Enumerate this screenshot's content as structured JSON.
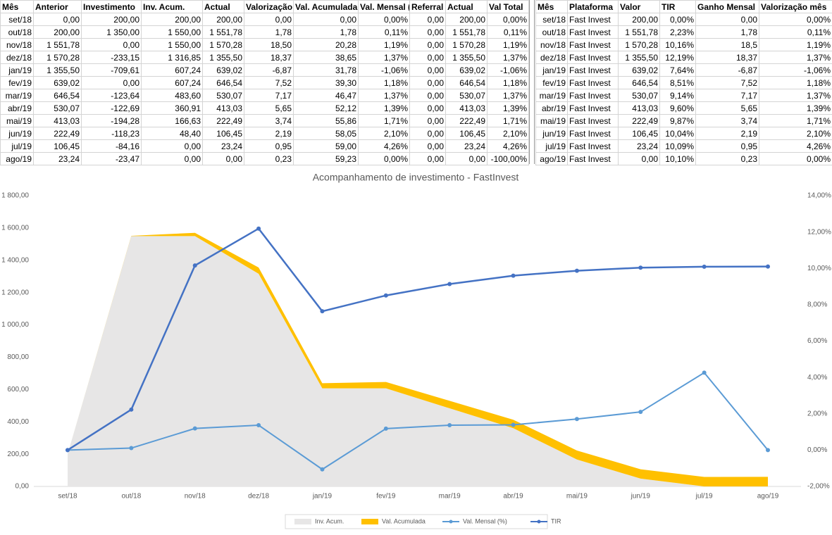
{
  "table1": {
    "header": [
      "Mês",
      "Anterior",
      "Investimento",
      "Inv. Acum.",
      "Actual",
      "Valorização",
      "Val. Acumulada",
      "Val. Mensal (",
      "Referral",
      "Actual",
      "Val Total"
    ],
    "rows": [
      [
        "set/18",
        "0,00",
        "200,00",
        "200,00",
        "200,00",
        "0,00",
        "0,00",
        "0,00%",
        "0,00",
        "200,00",
        "0,00%"
      ],
      [
        "out/18",
        "200,00",
        "1 350,00",
        "1 550,00",
        "1 551,78",
        "1,78",
        "1,78",
        "0,11%",
        "0,00",
        "1 551,78",
        "0,11%"
      ],
      [
        "nov/18",
        "1 551,78",
        "0,00",
        "1 550,00",
        "1 570,28",
        "18,50",
        "20,28",
        "1,19%",
        "0,00",
        "1 570,28",
        "1,19%"
      ],
      [
        "dez/18",
        "1 570,28",
        "-233,15",
        "1 316,85",
        "1 355,50",
        "18,37",
        "38,65",
        "1,37%",
        "0,00",
        "1 355,50",
        "1,37%"
      ],
      [
        "jan/19",
        "1 355,50",
        "-709,61",
        "607,24",
        "639,02",
        "-6,87",
        "31,78",
        "-1,06%",
        "0,00",
        "639,02",
        "-1,06%"
      ],
      [
        "fev/19",
        "639,02",
        "0,00",
        "607,24",
        "646,54",
        "7,52",
        "39,30",
        "1,18%",
        "0,00",
        "646,54",
        "1,18%"
      ],
      [
        "mar/19",
        "646,54",
        "-123,64",
        "483,60",
        "530,07",
        "7,17",
        "46,47",
        "1,37%",
        "0,00",
        "530,07",
        "1,37%"
      ],
      [
        "abr/19",
        "530,07",
        "-122,69",
        "360,91",
        "413,03",
        "5,65",
        "52,12",
        "1,39%",
        "0,00",
        "413,03",
        "1,39%"
      ],
      [
        "mai/19",
        "413,03",
        "-194,28",
        "166,63",
        "222,49",
        "3,74",
        "55,86",
        "1,71%",
        "0,00",
        "222,49",
        "1,71%"
      ],
      [
        "jun/19",
        "222,49",
        "-118,23",
        "48,40",
        "106,45",
        "2,19",
        "58,05",
        "2,10%",
        "0,00",
        "106,45",
        "2,10%"
      ],
      [
        "jul/19",
        "106,45",
        "-84,16",
        "0,00",
        "23,24",
        "0,95",
        "59,00",
        "4,26%",
        "0,00",
        "23,24",
        "4,26%"
      ],
      [
        "ago/19",
        "23,24",
        "-23,47",
        "0,00",
        "0,00",
        "0,23",
        "59,23",
        "0,00%",
        "0,00",
        "0,00",
        "-100,00%"
      ]
    ]
  },
  "table2": {
    "header": [
      "Mês",
      "Plataforma",
      "Valor",
      "TIR",
      "Ganho Mensal",
      "Valorização mês"
    ],
    "rows": [
      [
        "set/18",
        "Fast Invest",
        "200,00",
        "0,00%",
        "0,00",
        "0,00%"
      ],
      [
        "out/18",
        "Fast Invest",
        "1 551,78",
        "2,23%",
        "1,78",
        "0,11%"
      ],
      [
        "nov/18",
        "Fast Invest",
        "1 570,28",
        "10,16%",
        "18,5",
        "1,19%"
      ],
      [
        "dez/18",
        "Fast Invest",
        "1 355,50",
        "12,19%",
        "18,37",
        "1,37%"
      ],
      [
        "jan/19",
        "Fast Invest",
        "639,02",
        "7,64%",
        "-6,87",
        "-1,06%"
      ],
      [
        "fev/19",
        "Fast Invest",
        "646,54",
        "8,51%",
        "7,52",
        "1,18%"
      ],
      [
        "mar/19",
        "Fast Invest",
        "530,07",
        "9,14%",
        "7,17",
        "1,37%"
      ],
      [
        "abr/19",
        "Fast Invest",
        "413,03",
        "9,60%",
        "5,65",
        "1,39%"
      ],
      [
        "mai/19",
        "Fast Invest",
        "222,49",
        "9,87%",
        "3,74",
        "1,71%"
      ],
      [
        "jun/19",
        "Fast Invest",
        "106,45",
        "10,04%",
        "2,19",
        "2,10%"
      ],
      [
        "jul/19",
        "Fast Invest",
        "23,24",
        "10,09%",
        "0,95",
        "4,26%"
      ],
      [
        "ago/19",
        "Fast Invest",
        "0,00",
        "10,10%",
        "0,23",
        "0,00%"
      ]
    ]
  },
  "chart_data": {
    "type": "combo",
    "title": "Acompanhamento de investimento - FastInvest",
    "categories": [
      "set/18",
      "out/18",
      "nov/18",
      "dez/18",
      "jan/19",
      "fev/19",
      "mar/19",
      "abr/19",
      "mai/19",
      "jun/19",
      "jul/19",
      "ago/19"
    ],
    "series": [
      {
        "name": "Inv. Acum.",
        "type": "area",
        "stacked": true,
        "color": "#e7e6e6",
        "values": [
          200,
          1550,
          1550,
          1316.85,
          607.24,
          607.24,
          483.6,
          360.91,
          166.63,
          48.4,
          0,
          0
        ]
      },
      {
        "name": "Val. Acumulada",
        "type": "area",
        "stacked": true,
        "color": "#ffc000",
        "values": [
          0,
          1.78,
          20.28,
          38.65,
          31.78,
          39.3,
          46.47,
          52.12,
          55.86,
          58.05,
          59,
          59.23
        ]
      },
      {
        "name": "Val. Mensal (%)",
        "type": "line",
        "axis": "y2",
        "color": "#5b9bd5",
        "values": [
          0,
          0.11,
          1.19,
          1.37,
          -1.06,
          1.18,
          1.37,
          1.39,
          1.71,
          2.1,
          4.26,
          0
        ]
      },
      {
        "name": "TIR",
        "type": "line",
        "axis": "y2",
        "color": "#4472c4",
        "values": [
          0,
          2.23,
          10.16,
          12.19,
          7.64,
          8.51,
          9.14,
          9.6,
          9.87,
          10.04,
          10.09,
          10.1
        ]
      }
    ],
    "ylim": [
      0,
      1800
    ],
    "yticks": [
      {
        "value": 0,
        "label": "0,00"
      },
      {
        "value": 200,
        "label": "200,00"
      },
      {
        "value": 400,
        "label": "400,00"
      },
      {
        "value": 600,
        "label": "600,00"
      },
      {
        "value": 800,
        "label": "800,00"
      },
      {
        "value": 1000,
        "label": "1 000,00"
      },
      {
        "value": 1200,
        "label": "1 200,00"
      },
      {
        "value": 1400,
        "label": "1 400,00"
      },
      {
        "value": 1600,
        "label": "1 600,00"
      },
      {
        "value": 1800,
        "label": "1 800,00"
      }
    ],
    "y2lim": [
      -2,
      14
    ],
    "y2ticks": [
      {
        "value": -2,
        "label": "-2,00%"
      },
      {
        "value": 0,
        "label": "0,00%"
      },
      {
        "value": 2,
        "label": "2,00%"
      },
      {
        "value": 4,
        "label": "4,00%"
      },
      {
        "value": 6,
        "label": "6,00%"
      },
      {
        "value": 8,
        "label": "8,00%"
      },
      {
        "value": 10,
        "label": "10,00%"
      },
      {
        "value": 12,
        "label": "12,00%"
      },
      {
        "value": 14,
        "label": "14,00%"
      }
    ],
    "legend": "bottom"
  }
}
